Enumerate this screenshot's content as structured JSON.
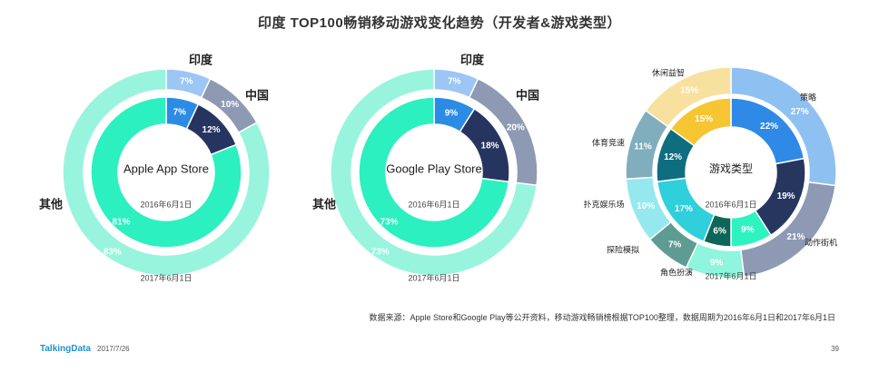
{
  "title": "印度 TOP100畅销移动游戏变化趋势（开发者&游戏类型）",
  "source": "数据来源：Apple Store和Google Play等公开资料，移动游戏畅销榜根据TOP100整理，数据周期为2016年6月1日和2017年6月1日",
  "footer": {
    "logo": "TalkingData",
    "date": "2017/7/26",
    "page": "39"
  },
  "colors": {
    "accent_dark": "#1f3a5f"
  },
  "chart_data": [
    {
      "type": "donut",
      "center_label": "Apple App Store",
      "inner_ring_label": "2016年6月1日",
      "outer_ring_label": "2017年6月1日",
      "categories": [
        "印度",
        "中国",
        "其他"
      ],
      "series": [
        {
          "name": "2016年6月1日",
          "values": [
            7,
            12,
            81
          ]
        },
        {
          "name": "2017年6月1日",
          "values": [
            7,
            10,
            83
          ]
        }
      ]
    },
    {
      "type": "donut",
      "center_label": "Google Play Store",
      "inner_ring_label": "2016年6月1日",
      "outer_ring_label": "2017年6月1日",
      "categories": [
        "印度",
        "中国",
        "其他"
      ],
      "series": [
        {
          "name": "2016年6月1日",
          "values": [
            9,
            18,
            73
          ]
        },
        {
          "name": "2017年6月1日",
          "values": [
            7,
            20,
            73
          ]
        }
      ]
    },
    {
      "type": "donut",
      "center_label": "游戏类型",
      "inner_ring_label": "2016年6月1日",
      "outer_ring_label": "2017年6月1日",
      "categories": [
        "策略",
        "动作街机",
        "角色扮演",
        "探险模拟",
        "扑克娱乐场",
        "体育竞速",
        "休闲益智"
      ],
      "series": [
        {
          "name": "2016年6月1日",
          "values": [
            22,
            19,
            9,
            6,
            17,
            12,
            15
          ]
        },
        {
          "name": "2017年6月1日",
          "values": [
            27,
            21,
            9,
            7,
            10,
            11,
            15
          ]
        }
      ]
    }
  ]
}
